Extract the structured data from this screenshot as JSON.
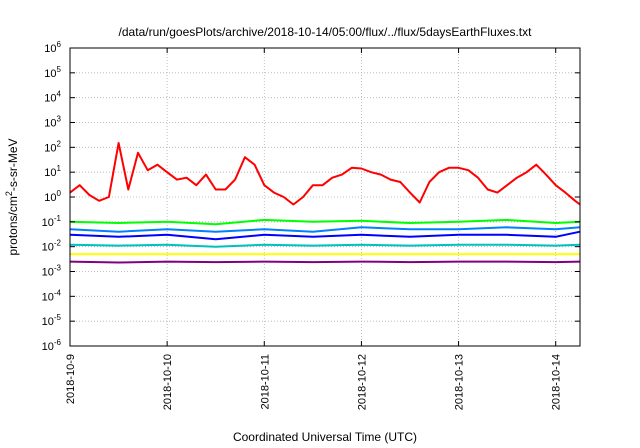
{
  "chart_data": {
    "type": "line",
    "title": "/data/run/goesPlots/archive/2018-10-14/05:00/flux/../flux/5daysEarthFluxes.txt",
    "xlabel": "Coordinated Universal Time (UTC)",
    "ylabel_base": "protons/cm",
    "ylabel_sup": "2",
    "ylabel_rest": "-s-sr-MeV",
    "yscale": "log",
    "ylim_exp": [
      -6,
      6
    ],
    "y_ticks": [
      {
        "base": "10",
        "exp": "-6"
      },
      {
        "base": "10",
        "exp": "-5"
      },
      {
        "base": "10",
        "exp": "-4"
      },
      {
        "base": "10",
        "exp": "-3"
      },
      {
        "base": "10",
        "exp": "-2"
      },
      {
        "base": "10",
        "exp": "-1"
      },
      {
        "base": "10",
        "exp": "0"
      },
      {
        "base": "10",
        "exp": "1"
      },
      {
        "base": "10",
        "exp": "2"
      },
      {
        "base": "10",
        "exp": "3"
      },
      {
        "base": "10",
        "exp": "4"
      },
      {
        "base": "10",
        "exp": "5"
      },
      {
        "base": "10",
        "exp": "6"
      }
    ],
    "x_range_days": [
      0,
      5.25
    ],
    "x_ticks": [
      {
        "label": "2018-10-9",
        "day": 0
      },
      {
        "label": "2018-10-10",
        "day": 1
      },
      {
        "label": "2018-10-11",
        "day": 2
      },
      {
        "label": "2018-10-12",
        "day": 3
      },
      {
        "label": "2018-10-13",
        "day": 4
      },
      {
        "label": "2018-10-14",
        "day": 5
      }
    ],
    "grid": true,
    "series": [
      {
        "color": "#ff0000",
        "x": [
          0,
          0.1,
          0.2,
          0.3,
          0.4,
          0.5,
          0.6,
          0.7,
          0.8,
          0.9,
          1.0,
          1.1,
          1.2,
          1.3,
          1.4,
          1.5,
          1.6,
          1.7,
          1.8,
          1.9,
          2.0,
          2.1,
          2.2,
          2.3,
          2.4,
          2.5,
          2.6,
          2.7,
          2.8,
          2.9,
          3.0,
          3.1,
          3.2,
          3.3,
          3.4,
          3.5,
          3.6,
          3.7,
          3.8,
          3.9,
          4.0,
          4.1,
          4.2,
          4.3,
          4.4,
          4.5,
          4.6,
          4.7,
          4.8,
          4.9,
          5.0,
          5.1,
          5.2,
          5.25
        ],
        "y": [
          1.5,
          3,
          1.2,
          0.7,
          1,
          150,
          2,
          60,
          12,
          20,
          10,
          5,
          6,
          3,
          8,
          2,
          2,
          5,
          40,
          20,
          3,
          1.5,
          1,
          0.5,
          1,
          3,
          3,
          6,
          8,
          15,
          14,
          10,
          8,
          5,
          4,
          1.5,
          0.6,
          4,
          10,
          15,
          15,
          12,
          6,
          2,
          1.5,
          3,
          6,
          10,
          20,
          8,
          3,
          1.5,
          0.7,
          0.5
        ]
      },
      {
        "color": "#00ff00",
        "x": [
          0,
          0.5,
          1.0,
          1.5,
          2.0,
          2.5,
          3.0,
          3.5,
          4.0,
          4.5,
          5.0,
          5.25
        ],
        "y": [
          0.1,
          0.09,
          0.1,
          0.08,
          0.12,
          0.1,
          0.11,
          0.09,
          0.1,
          0.12,
          0.09,
          0.1
        ]
      },
      {
        "color": "#0000ff",
        "x": [
          0,
          0.5,
          1.0,
          1.5,
          2.0,
          2.5,
          3.0,
          3.5,
          4.0,
          4.5,
          5.0,
          5.25
        ],
        "y": [
          0.03,
          0.025,
          0.03,
          0.02,
          0.03,
          0.025,
          0.03,
          0.025,
          0.03,
          0.03,
          0.025,
          0.04
        ]
      },
      {
        "color": "#0080ff",
        "x": [
          0,
          0.5,
          1.0,
          1.5,
          2.0,
          2.5,
          3.0,
          3.5,
          4.0,
          4.5,
          5.0,
          5.25
        ],
        "y": [
          0.05,
          0.04,
          0.05,
          0.04,
          0.05,
          0.04,
          0.06,
          0.05,
          0.05,
          0.06,
          0.05,
          0.06
        ]
      },
      {
        "color": "#00c0c0",
        "x": [
          0,
          0.5,
          1.0,
          1.5,
          2.0,
          2.5,
          3.0,
          3.5,
          4.0,
          4.5,
          5.0,
          5.25
        ],
        "y": [
          0.012,
          0.011,
          0.012,
          0.01,
          0.012,
          0.011,
          0.012,
          0.011,
          0.012,
          0.012,
          0.011,
          0.012
        ]
      },
      {
        "color": "#ffff00",
        "x": [
          0,
          0.5,
          1.0,
          1.5,
          2.0,
          2.5,
          3.0,
          3.5,
          4.0,
          4.5,
          5.0,
          5.25
        ],
        "y": [
          0.005,
          0.005,
          0.005,
          0.005,
          0.005,
          0.005,
          0.005,
          0.005,
          0.005,
          0.005,
          0.005,
          0.005
        ]
      },
      {
        "color": "#800080",
        "x": [
          0,
          0.5,
          1.0,
          1.5,
          2.0,
          2.5,
          3.0,
          3.5,
          4.0,
          4.5,
          5.0,
          5.25
        ],
        "y": [
          0.0025,
          0.0023,
          0.0025,
          0.0024,
          0.0025,
          0.0024,
          0.0025,
          0.0024,
          0.0025,
          0.0025,
          0.0024,
          0.0025
        ]
      }
    ]
  }
}
